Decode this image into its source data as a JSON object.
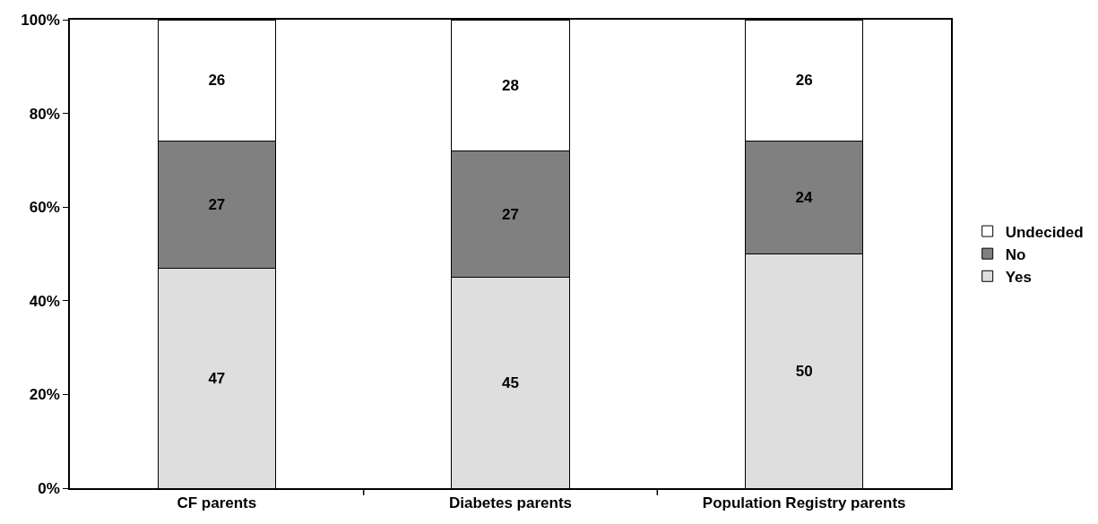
{
  "chart_data": {
    "type": "bar",
    "stacked": true,
    "categories": [
      "CF parents",
      "Diabetes parents",
      "Population Registry parents"
    ],
    "series": [
      {
        "name": "Yes",
        "color": "#dedede",
        "values": [
          47,
          45,
          50
        ]
      },
      {
        "name": "No",
        "color": "#808080",
        "values": [
          27,
          27,
          24
        ]
      },
      {
        "name": "Undecided",
        "color": "#ffffff",
        "values": [
          26,
          28,
          26
        ]
      }
    ],
    "ylim": [
      0,
      100
    ],
    "yticks": [
      {
        "value": 0,
        "label": "0%"
      },
      {
        "value": 20,
        "label": "20%"
      },
      {
        "value": 40,
        "label": "40%"
      },
      {
        "value": 60,
        "label": "60%"
      },
      {
        "value": 80,
        "label": "80%"
      },
      {
        "value": 100,
        "label": "100%"
      }
    ],
    "data_labels": true,
    "grid": false,
    "legend": "right"
  }
}
